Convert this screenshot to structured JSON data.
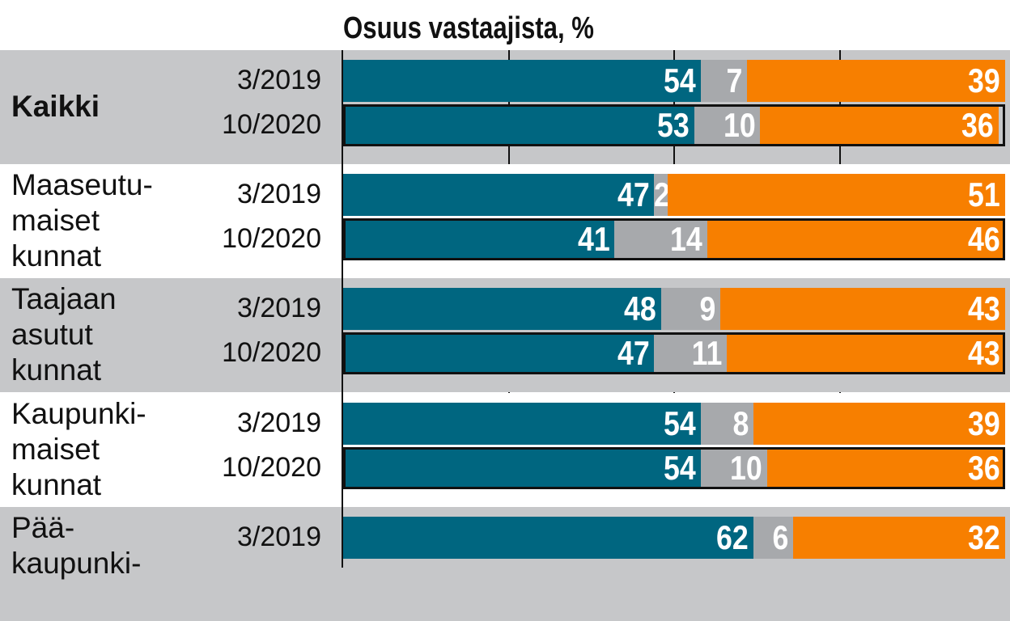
{
  "chart_data": {
    "type": "bar",
    "orientation": "horizontal-stacked-100",
    "title": "Osuus vastaajista, %",
    "xlim": [
      0,
      100
    ],
    "grid_x": [
      25,
      50,
      75
    ],
    "colors": {
      "segment1": "#006680",
      "segment2": "#a7a9ac",
      "segment3": "#f77f00",
      "band": "#c6c7c9"
    },
    "groups": [
      {
        "label_lines": [
          "Kaikki"
        ],
        "bold": true,
        "rows": [
          {
            "date": "3/2019",
            "values": [
              54,
              7,
              39
            ]
          },
          {
            "date": "10/2020",
            "values": [
              53,
              10,
              36
            ]
          }
        ]
      },
      {
        "label_lines": [
          "Maaseutu-",
          "maiset",
          "kunnat"
        ],
        "bold": false,
        "rows": [
          {
            "date": "3/2019",
            "values": [
              47,
              2,
              51
            ]
          },
          {
            "date": "10/2020",
            "values": [
              41,
              14,
              46
            ]
          }
        ]
      },
      {
        "label_lines": [
          "Taajaan",
          "asutut",
          "kunnat"
        ],
        "bold": false,
        "rows": [
          {
            "date": "3/2019",
            "values": [
              48,
              9,
              43
            ]
          },
          {
            "date": "10/2020",
            "values": [
              47,
              11,
              43
            ]
          }
        ]
      },
      {
        "label_lines": [
          "Kaupunki-",
          "maiset",
          "kunnat"
        ],
        "bold": false,
        "rows": [
          {
            "date": "3/2019",
            "values": [
              54,
              8,
              39
            ]
          },
          {
            "date": "10/2020",
            "values": [
              54,
              10,
              36
            ]
          }
        ]
      },
      {
        "label_lines": [
          "Pää-",
          "kaupunki-"
        ],
        "bold": false,
        "rows": [
          {
            "date": "3/2019",
            "values": [
              62,
              6,
              32
            ]
          }
        ]
      }
    ]
  }
}
